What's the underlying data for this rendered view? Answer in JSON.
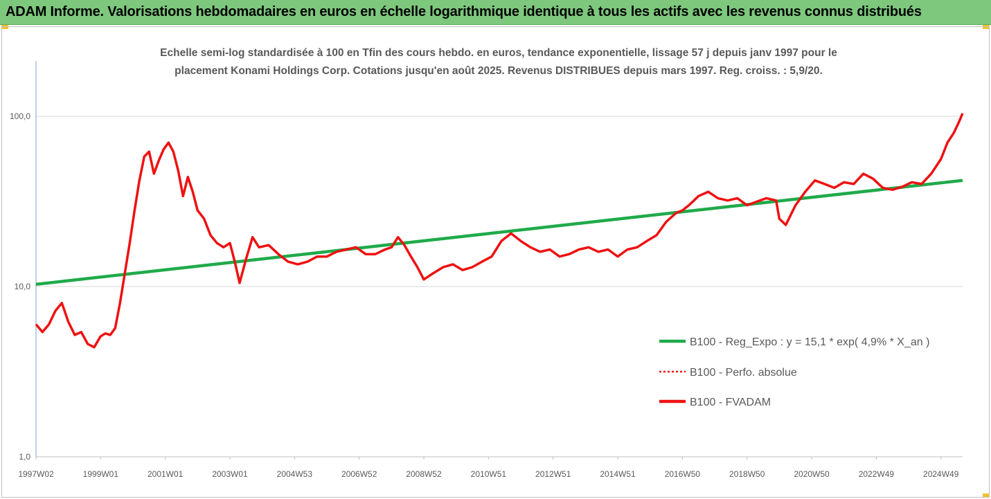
{
  "header": {
    "title": "ADAM Informe. Valorisations hebdomadaires en euros en échelle logarithmique identique à tous les actifs avec les revenus connus distribués"
  },
  "colors": {
    "banner": "#7dc87d",
    "trend": "#1faa4a",
    "series": "#ee1111",
    "grid": "#d9d9d9"
  },
  "chart_data": {
    "type": "line",
    "title": "Echelle semi-log standardisée à 100 en Tfin des cours hebdo. en euros, tendance exponentielle, lissage 57 j depuis janv 1997 pour le placement Konami Holdings Corp. Cotations jusqu'en août 2025. Revenus DISTRIBUES depuis mars 1997. Reg. croiss. : 5,9/20.",
    "title_lines": [
      "Echelle semi-log standardisée à 100 en Tfin des cours hebdo. en euros, tendance exponentielle, lissage 57 j depuis janv 1997 pour le",
      "placement Konami Holdings Corp. Cotations jusqu'en août 2025. Revenus DISTRIBUES depuis mars 1997. Reg. croiss. : 5,9/20."
    ],
    "y_scale": "log",
    "ylim": [
      1,
      200
    ],
    "y_ticks": [
      {
        "value": 1,
        "label": "1,0"
      },
      {
        "value": 10,
        "label": "10,0"
      },
      {
        "value": 100,
        "label": "100,0"
      }
    ],
    "xlim": [
      1997.0,
      2025.67
    ],
    "x_ticks": [
      {
        "value": 1997.0,
        "label": "1997W02"
      },
      {
        "value": 1999.0,
        "label": "1999W01"
      },
      {
        "value": 2001.0,
        "label": "2001W01"
      },
      {
        "value": 2003.0,
        "label": "2003W01"
      },
      {
        "value": 2005.0,
        "label": "2004W53"
      },
      {
        "value": 2007.0,
        "label": "2006W52"
      },
      {
        "value": 2009.0,
        "label": "2008W52"
      },
      {
        "value": 2011.0,
        "label": "2010W51"
      },
      {
        "value": 2013.0,
        "label": "2012W51"
      },
      {
        "value": 2015.0,
        "label": "2014W51"
      },
      {
        "value": 2017.0,
        "label": "2016W50"
      },
      {
        "value": 2019.0,
        "label": "2018W50"
      },
      {
        "value": 2021.0,
        "label": "2020W50"
      },
      {
        "value": 2023.0,
        "label": "2022W49"
      },
      {
        "value": 2025.0,
        "label": "2024W49"
      }
    ],
    "grid": true,
    "legend_position": "right",
    "series": [
      {
        "name": "B100 - Reg_Expo : y = 15,1 * exp( 4,9% *  X_an )",
        "style": "solid-green",
        "color": "#1faa4a",
        "x": [
          1997.0,
          2025.67
        ],
        "y": [
          10.3,
          42.0
        ]
      },
      {
        "name": "B100 - Perfo. absolue",
        "style": "dotted-red",
        "color": "#ee1111",
        "x": [],
        "y": []
      },
      {
        "name": "B100 - FVADAM",
        "style": "solid-red",
        "color": "#ee1111",
        "x": [
          1997.0,
          1997.2,
          1997.4,
          1997.6,
          1997.8,
          1998.0,
          1998.2,
          1998.4,
          1998.6,
          1998.8,
          1999.0,
          1999.15,
          1999.3,
          1999.45,
          1999.6,
          1999.75,
          1999.9,
          2000.05,
          2000.2,
          2000.35,
          2000.5,
          2000.65,
          2000.8,
          2000.95,
          2001.1,
          2001.25,
          2001.4,
          2001.55,
          2001.7,
          2001.85,
          2002.0,
          2002.2,
          2002.4,
          2002.6,
          2002.8,
          2003.0,
          2003.15,
          2003.3,
          2003.5,
          2003.7,
          2003.9,
          2004.2,
          2004.5,
          2004.8,
          2005.1,
          2005.4,
          2005.7,
          2006.0,
          2006.3,
          2006.6,
          2006.9,
          2007.2,
          2007.5,
          2007.8,
          2008.0,
          2008.2,
          2008.4,
          2008.6,
          2008.8,
          2009.0,
          2009.3,
          2009.6,
          2009.9,
          2010.2,
          2010.5,
          2010.8,
          2011.1,
          2011.4,
          2011.7,
          2012.0,
          2012.3,
          2012.6,
          2012.9,
          2013.2,
          2013.5,
          2013.8,
          2014.1,
          2014.4,
          2014.7,
          2015.0,
          2015.3,
          2015.6,
          2015.9,
          2016.2,
          2016.5,
          2016.8,
          2017.0,
          2017.2,
          2017.5,
          2017.8,
          2018.1,
          2018.4,
          2018.7,
          2019.0,
          2019.3,
          2019.6,
          2019.9,
          2020.0,
          2020.2,
          2020.5,
          2020.8,
          2021.1,
          2021.4,
          2021.7,
          2022.0,
          2022.3,
          2022.6,
          2022.9,
          2023.2,
          2023.5,
          2023.8,
          2024.1,
          2024.4,
          2024.7,
          2025.0,
          2025.2,
          2025.4,
          2025.55,
          2025.67
        ],
        "y": [
          6.0,
          5.4,
          6.0,
          7.2,
          8.0,
          6.2,
          5.2,
          5.4,
          4.6,
          4.4,
          5.1,
          5.3,
          5.2,
          5.7,
          8.0,
          12.0,
          18.0,
          28.0,
          42.0,
          58.0,
          62.0,
          46.0,
          55.0,
          64.0,
          70.0,
          62.0,
          48.0,
          34.0,
          44.0,
          36.0,
          28.0,
          25.0,
          20.0,
          18.0,
          17.0,
          18.0,
          14.0,
          10.5,
          14.5,
          19.5,
          17.0,
          17.5,
          15.5,
          14.0,
          13.5,
          14.0,
          15.0,
          15.0,
          16.0,
          16.5,
          17.0,
          15.5,
          15.5,
          16.5,
          17.0,
          19.5,
          17.5,
          15.0,
          13.0,
          11.0,
          12.0,
          13.0,
          13.5,
          12.5,
          13.0,
          14.0,
          15.0,
          18.5,
          20.5,
          18.5,
          17.0,
          16.0,
          16.5,
          15.0,
          15.5,
          16.5,
          17.0,
          16.0,
          16.5,
          15.0,
          16.5,
          17.0,
          18.5,
          20.0,
          24.0,
          27.0,
          28.0,
          30.0,
          34.0,
          36.0,
          33.0,
          32.0,
          33.0,
          30.0,
          31.5,
          33.0,
          32.0,
          25.0,
          23.0,
          30.0,
          36.0,
          42.0,
          40.0,
          38.0,
          41.0,
          40.0,
          46.0,
          43.0,
          38.0,
          37.0,
          38.5,
          41.0,
          40.0,
          46.0,
          56.0,
          70.0,
          80.0,
          92.0,
          104.0
        ]
      }
    ]
  }
}
